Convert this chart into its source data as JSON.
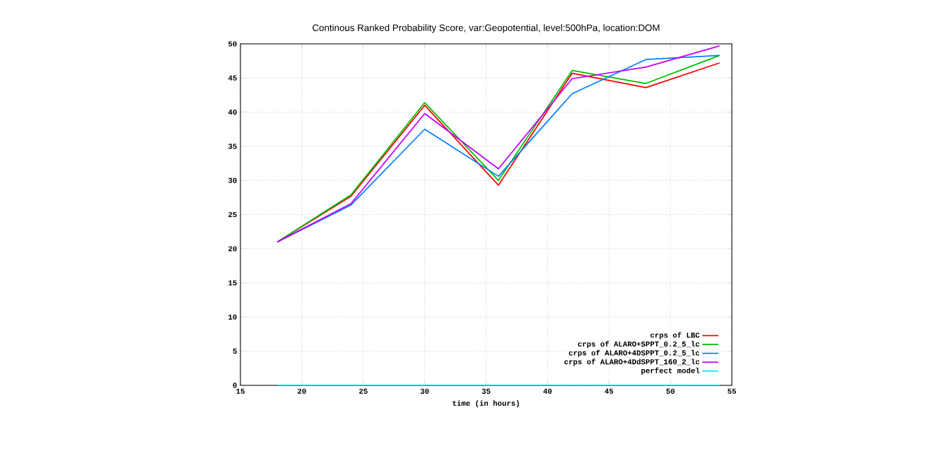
{
  "chart_data": {
    "type": "line",
    "title": "Continous Ranked Probability Score, var:Geopotential, level:500hPa, location:DOM",
    "xlabel": "time (in hours)",
    "x": [
      18,
      24,
      30,
      36,
      42,
      48,
      54
    ],
    "series": [
      {
        "name": "crps of LBC",
        "color": "#ff0000",
        "values": [
          21,
          27.7,
          41.0,
          29.3,
          45.7,
          43.6,
          47.2
        ]
      },
      {
        "name": "crps of ALARO+SPPT_0.2_5_lc",
        "color": "#00c000",
        "values": [
          21,
          27.9,
          41.4,
          30.0,
          46.1,
          44.2,
          48.3
        ]
      },
      {
        "name": "crps of ALARO+4DSPPT_0.2_5_lc",
        "color": "#0080ff",
        "values": [
          21,
          26.4,
          37.5,
          30.6,
          42.7,
          47.7,
          48.3
        ]
      },
      {
        "name": "crps of ALARO+4DdSPPT_160_2_lc",
        "color": "#c000ff",
        "values": [
          21,
          26.6,
          39.8,
          31.7,
          44.9,
          46.6,
          49.7
        ]
      },
      {
        "name": "perfect model",
        "color": "#00eeee",
        "values": [
          0,
          0,
          0,
          0,
          0,
          0,
          0
        ]
      }
    ],
    "xlim": [
      15,
      55
    ],
    "xticks": [
      15,
      20,
      25,
      30,
      35,
      40,
      45,
      50,
      55
    ],
    "ylim": [
      0,
      50
    ],
    "yticks": [
      0,
      5,
      10,
      15,
      20,
      25,
      30,
      35,
      40,
      45,
      50
    ],
    "grid": true,
    "legend": "bottom right",
    "marker": "none",
    "line_style": "solid"
  }
}
